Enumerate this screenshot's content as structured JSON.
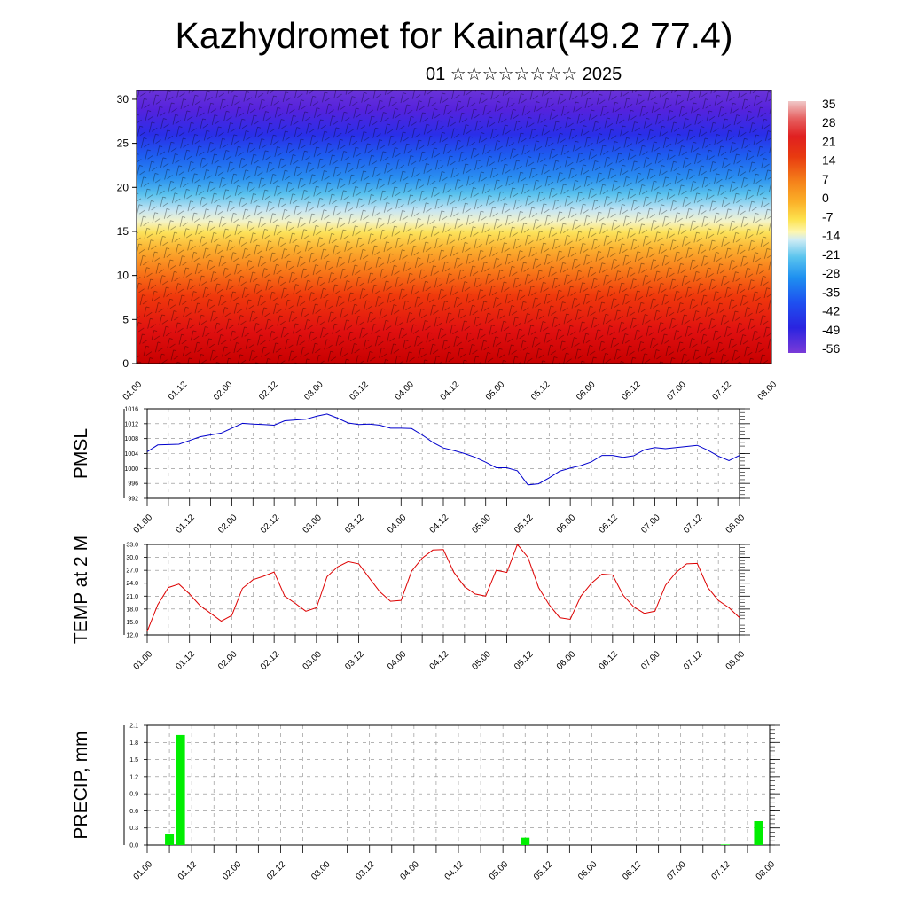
{
  "header": {
    "title": "Kazhydromet for Kainar(49.2 77.4)",
    "subtitle": "01 ☆☆☆☆☆☆☆☆ 2025"
  },
  "colors": {
    "pmsl_line": "#0000cc",
    "temp_line": "#dd0000",
    "precip_bar": "#00ee00",
    "grid": "#888888"
  },
  "chart_data": [
    {
      "type": "heatmap",
      "title": "",
      "ylim": [
        0,
        31
      ],
      "y_ticks": [
        "0",
        "5",
        "10",
        "15",
        "20",
        "25",
        "30"
      ],
      "x_ticks": [
        "01.00",
        "01.12",
        "02.00",
        "02.12",
        "03.00",
        "03.12",
        "04.00",
        "04.12",
        "05.00",
        "05.12",
        "06.00",
        "06.12",
        "07.00",
        "07.12",
        "08.00"
      ],
      "colorbar_labels": [
        "35",
        "28",
        "21",
        "14",
        "7",
        "0",
        "-7",
        "-14",
        "-21",
        "-28",
        "-35",
        "-42",
        "-49",
        "-56"
      ],
      "overlay": "wind barbs"
    },
    {
      "type": "line",
      "ylabel": "PMSL",
      "ylim": [
        992,
        1016
      ],
      "y_ticks": [
        "1016",
        "1012",
        "1008",
        "1004",
        "1000",
        "996",
        "992"
      ],
      "x_ticks": [
        "01.00",
        "01.12",
        "02.00",
        "02.12",
        "03.00",
        "03.12",
        "04.00",
        "04.12",
        "05.00",
        "05.12",
        "06.00",
        "06.12",
        "07.00",
        "07.12",
        "08.00"
      ],
      "grid": true,
      "x": [
        0,
        3,
        6,
        9,
        12,
        15,
        18,
        21,
        24,
        27,
        30,
        33,
        36,
        39,
        42,
        45,
        48,
        51,
        54,
        57,
        60,
        63,
        66,
        69,
        72,
        75,
        78,
        81,
        84,
        87,
        90,
        93,
        96,
        99,
        102,
        105,
        108,
        111,
        114,
        117,
        120,
        123,
        126,
        129,
        132,
        135,
        138,
        141,
        144,
        147,
        150,
        153,
        156,
        159,
        162,
        165,
        168
      ],
      "values": [
        1004.5,
        1006.3,
        1006.4,
        1006.5,
        1007.5,
        1008.5,
        1009.0,
        1009.5,
        1010.8,
        1012.1,
        1011.9,
        1011.8,
        1011.6,
        1012.8,
        1013.0,
        1013.2,
        1014.0,
        1014.6,
        1013.5,
        1012.2,
        1011.8,
        1011.9,
        1011.6,
        1010.8,
        1010.8,
        1010.7,
        1009.0,
        1007.0,
        1005.5,
        1004.8,
        1004.0,
        1003.0,
        1001.7,
        1000.2,
        1000.2,
        999.4,
        995.6,
        995.9,
        997.5,
        999.3,
        1000.1,
        1000.8,
        1001.8,
        1003.5,
        1003.5,
        1003.0,
        1003.4,
        1005.0,
        1005.6,
        1005.3,
        1005.6,
        1005.9,
        1006.2,
        1004.9,
        1003.3,
        1002.1,
        1003.5
      ]
    },
    {
      "type": "line",
      "ylabel": "TEMP at 2 M",
      "ylim": [
        12,
        33
      ],
      "y_ticks": [
        "33.0",
        "30.0",
        "27.0",
        "24.0",
        "21.0",
        "18.0",
        "15.0",
        "12.0"
      ],
      "x_ticks": [
        "01.00",
        "01.12",
        "02.00",
        "02.12",
        "03.00",
        "03.12",
        "04.00",
        "04.12",
        "05.00",
        "05.12",
        "06.00",
        "06.12",
        "07.00",
        "07.12",
        "08.00"
      ],
      "grid": true,
      "x": [
        0,
        3,
        6,
        9,
        12,
        15,
        18,
        21,
        24,
        27,
        30,
        33,
        36,
        39,
        42,
        45,
        48,
        51,
        54,
        57,
        60,
        63,
        66,
        69,
        72,
        75,
        78,
        81,
        84,
        87,
        90,
        93,
        96,
        99,
        102,
        105,
        108,
        111,
        114,
        117,
        120,
        123,
        126,
        129,
        132,
        135,
        138,
        141,
        144,
        147,
        150,
        153,
        156,
        159,
        162,
        165,
        168
      ],
      "values": [
        12.8,
        19.0,
        23.0,
        23.8,
        21.5,
        18.8,
        17.0,
        15.2,
        16.5,
        22.8,
        24.8,
        25.6,
        26.6,
        21.0,
        19.3,
        17.5,
        18.3,
        25.5,
        27.8,
        29.0,
        28.5,
        25.2,
        22.0,
        19.8,
        20.0,
        26.8,
        29.8,
        31.7,
        31.8,
        26.5,
        23.2,
        21.5,
        21.0,
        27.0,
        26.5,
        33.0,
        30.0,
        23.0,
        19.0,
        16.0,
        15.6,
        21.0,
        24.0,
        26.1,
        25.9,
        21.2,
        18.5,
        17.0,
        17.5,
        23.5,
        26.5,
        28.5,
        28.6,
        23.0,
        20.0,
        18.3,
        16.0
      ]
    },
    {
      "type": "bar",
      "ylabel": "PRECIP, mm",
      "ylim": [
        0,
        2.1
      ],
      "y_ticks": [
        "2.1",
        "1.8",
        "1.5",
        "1.2",
        "0.9",
        "0.6",
        "0.3",
        "0.0"
      ],
      "x_ticks": [
        "01.00",
        "01.12",
        "02.00",
        "02.12",
        "03.00",
        "03.12",
        "04.00",
        "04.12",
        "05.00",
        "05.12",
        "06.00",
        "06.12",
        "07.00",
        "07.12",
        "08.00"
      ],
      "grid": true,
      "x": [
        6,
        9,
        102,
        156,
        165
      ],
      "values": [
        0.19,
        1.93,
        0.13,
        0.01,
        0.42
      ]
    }
  ]
}
